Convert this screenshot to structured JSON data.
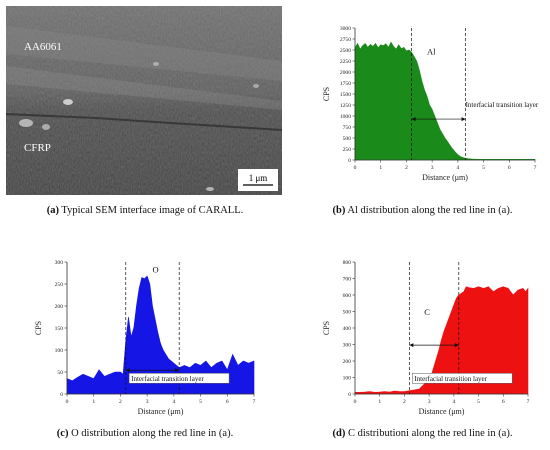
{
  "figure": {
    "panel_a": {
      "labels": {
        "metal": "AA6061",
        "composite": "CFRP",
        "scale_bar": "1 μm"
      },
      "caption": {
        "letter": "(a)",
        "text": " Typical SEM interface image of CARALL."
      }
    },
    "panel_b": {
      "caption": {
        "letter": "(b)",
        "text": " Al distribution along the red line in (a)."
      }
    },
    "panel_c": {
      "caption": {
        "letter": "(c)",
        "text": " O distribution along the red line in (a)."
      }
    },
    "panel_d": {
      "caption": {
        "letter": "(d)",
        "text": " C distributioni along the red line in (a)."
      }
    }
  },
  "chart_data": [
    {
      "type": "area",
      "panel": "b",
      "element_label": "Al",
      "xlabel": "Distance (μm)",
      "ylabel": "CPS",
      "xlim": [
        0,
        7
      ],
      "ylim": [
        0,
        3000
      ],
      "x_ticks": [
        0,
        1,
        2,
        3,
        4,
        5,
        6,
        7
      ],
      "y_ticks": [
        0,
        250,
        500,
        750,
        1000,
        1250,
        1500,
        1750,
        2000,
        2250,
        2500,
        2750,
        3000
      ],
      "fill_color": "#1a8a1a",
      "annotation": "Interfacial transition layer",
      "transition_layer": [
        2.2,
        4.3
      ],
      "x": [
        0,
        0.1,
        0.2,
        0.3,
        0.4,
        0.5,
        0.6,
        0.7,
        0.8,
        0.9,
        1.0,
        1.1,
        1.2,
        1.3,
        1.4,
        1.5,
        1.6,
        1.7,
        1.8,
        1.9,
        2.0,
        2.1,
        2.2,
        2.3,
        2.4,
        2.5,
        2.6,
        2.7,
        2.8,
        2.9,
        3.0,
        3.1,
        3.2,
        3.3,
        3.4,
        3.5,
        3.6,
        3.7,
        3.8,
        3.9,
        4.0,
        4.1,
        4.2,
        4.3,
        4.4,
        4.5,
        4.6,
        4.7,
        4.8,
        5.0,
        5.5,
        6.0,
        6.5,
        7.0
      ],
      "y": [
        2550,
        2650,
        2520,
        2600,
        2650,
        2560,
        2630,
        2580,
        2650,
        2550,
        2620,
        2600,
        2640,
        2560,
        2680,
        2580,
        2520,
        2620,
        2530,
        2560,
        2480,
        2500,
        2450,
        2350,
        2250,
        2050,
        1800,
        1600,
        1450,
        1250,
        1150,
        1000,
        850,
        700,
        600,
        500,
        420,
        330,
        250,
        180,
        120,
        80,
        55,
        40,
        30,
        25,
        20,
        20,
        15,
        15,
        15,
        15,
        15,
        15
      ]
    },
    {
      "type": "area",
      "panel": "c",
      "element_label": "O",
      "xlabel": "Distance (μm)",
      "ylabel": "CPS",
      "xlim": [
        0,
        7
      ],
      "ylim": [
        0,
        300
      ],
      "x_ticks": [
        0,
        1,
        2,
        3,
        4,
        5,
        6,
        7
      ],
      "y_ticks": [
        0,
        50,
        100,
        150,
        200,
        250,
        300
      ],
      "fill_color": "#1515e6",
      "annotation": "Interfacial transition layer",
      "transition_layer": [
        2.2,
        4.2
      ],
      "x": [
        0,
        0.2,
        0.4,
        0.6,
        0.8,
        1.0,
        1.2,
        1.4,
        1.6,
        1.8,
        2.0,
        2.1,
        2.2,
        2.3,
        2.4,
        2.5,
        2.6,
        2.7,
        2.8,
        2.9,
        3.0,
        3.1,
        3.2,
        3.3,
        3.4,
        3.5,
        3.6,
        3.7,
        3.8,
        3.9,
        4.0,
        4.2,
        4.4,
        4.6,
        4.8,
        5.0,
        5.2,
        5.4,
        5.6,
        5.8,
        6.0,
        6.2,
        6.4,
        6.6,
        6.8,
        7.0
      ],
      "y": [
        35,
        30,
        38,
        45,
        40,
        35,
        55,
        40,
        45,
        50,
        50,
        45,
        120,
        175,
        130,
        150,
        200,
        240,
        265,
        262,
        268,
        250,
        200,
        170,
        140,
        115,
        100,
        90,
        80,
        75,
        70,
        60,
        65,
        60,
        70,
        65,
        75,
        60,
        70,
        75,
        55,
        90,
        65,
        75,
        70,
        75
      ]
    },
    {
      "type": "area",
      "panel": "d",
      "element_label": "C",
      "xlabel": "Distance (μm)",
      "ylabel": "CPS",
      "xlim": [
        0,
        7
      ],
      "ylim": [
        0,
        800
      ],
      "x_ticks": [
        0,
        1,
        2,
        3,
        4,
        5,
        6,
        7
      ],
      "y_ticks": [
        0,
        100,
        200,
        300,
        400,
        500,
        600,
        700,
        800
      ],
      "fill_color": "#ee1111",
      "annotation": "Interfacial transition layer",
      "transition_layer": [
        2.2,
        4.2
      ],
      "x": [
        0,
        0.2,
        0.4,
        0.6,
        0.8,
        1.0,
        1.2,
        1.4,
        1.6,
        1.8,
        2.0,
        2.2,
        2.4,
        2.6,
        2.8,
        3.0,
        3.1,
        3.2,
        3.3,
        3.4,
        3.5,
        3.6,
        3.7,
        3.8,
        3.9,
        4.0,
        4.1,
        4.2,
        4.3,
        4.4,
        4.5,
        4.6,
        4.8,
        5.0,
        5.2,
        5.4,
        5.6,
        5.8,
        6.0,
        6.2,
        6.4,
        6.6,
        6.8,
        6.9,
        7.0
      ],
      "y": [
        10,
        10,
        12,
        15,
        10,
        12,
        15,
        12,
        18,
        15,
        15,
        20,
        25,
        30,
        60,
        90,
        120,
        170,
        220,
        270,
        330,
        380,
        420,
        460,
        500,
        540,
        580,
        600,
        610,
        620,
        650,
        645,
        640,
        650,
        640,
        650,
        620,
        640,
        650,
        640,
        600,
        630,
        640,
        620,
        640
      ]
    }
  ]
}
